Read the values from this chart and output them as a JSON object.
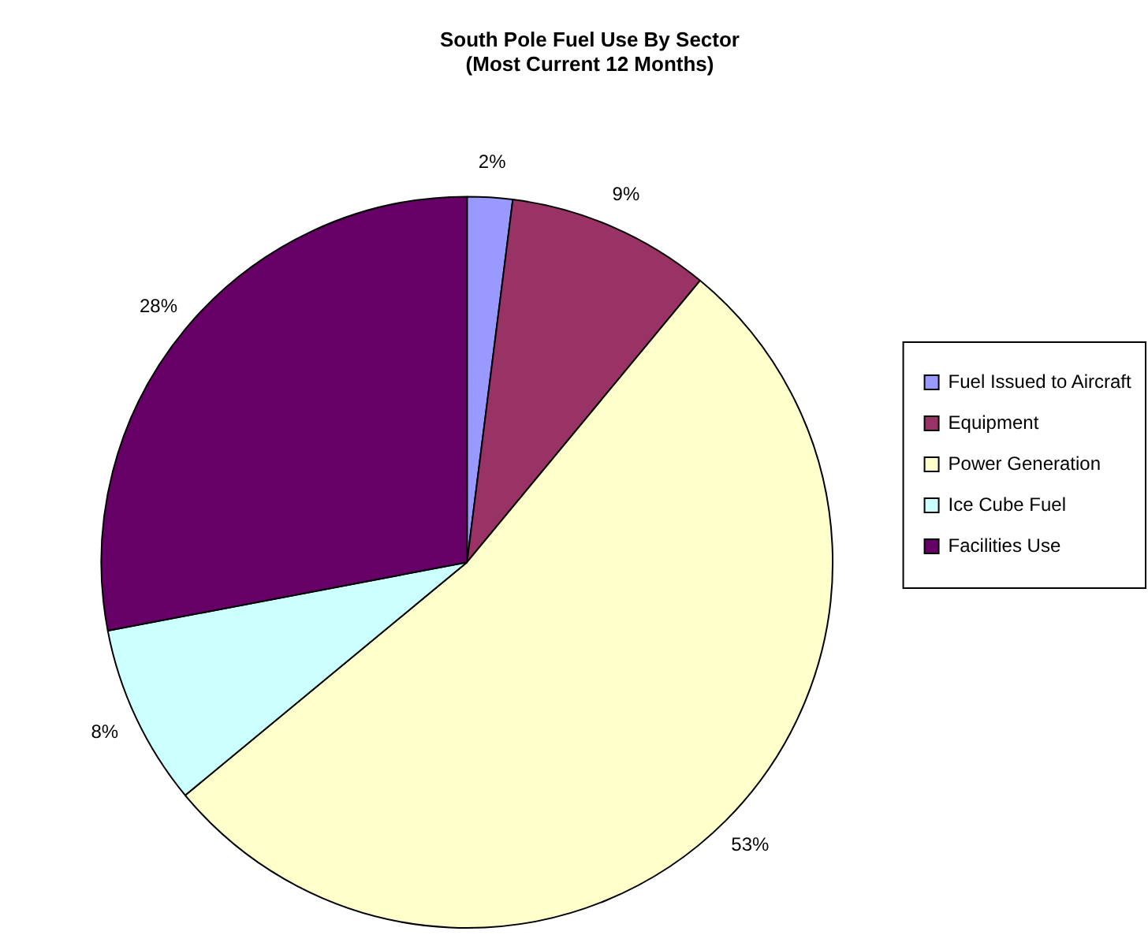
{
  "chart_data": {
    "type": "pie",
    "title": "South Pole Fuel Use By Sector\n(Most Current 12 Months)",
    "categories": [
      "Fuel Issued to Aircraft",
      "Equipment",
      "Power Generation",
      "Ice Cube Fuel",
      "Facilities Use"
    ],
    "values": [
      2,
      9,
      53,
      8,
      28
    ],
    "colors": [
      "#9999ff",
      "#993366",
      "#ffffcc",
      "#ccffff",
      "#660066"
    ],
    "value_labels": [
      "2%",
      "9%",
      "53%",
      "8%",
      "28%"
    ],
    "legend": "right"
  }
}
